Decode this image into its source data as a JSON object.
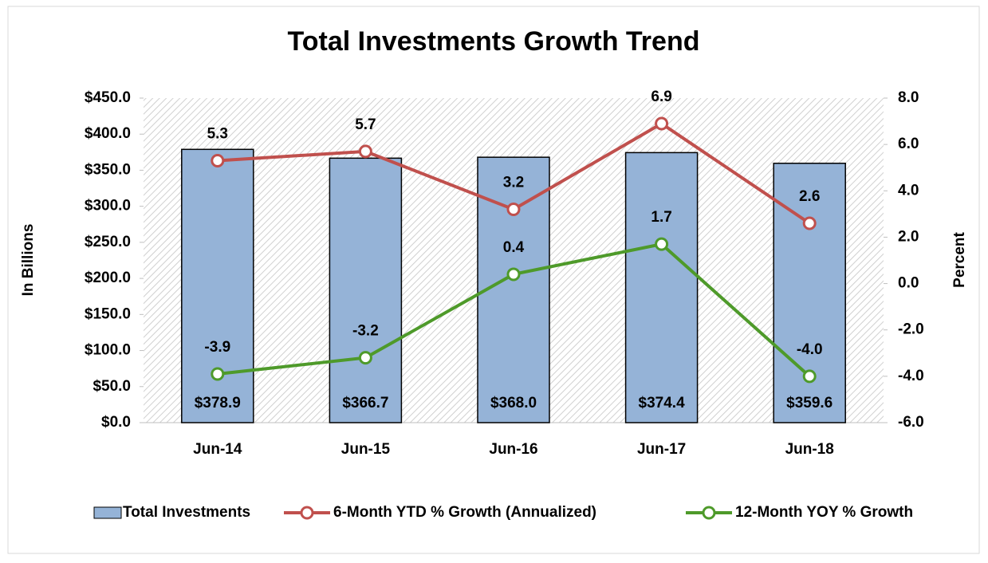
{
  "chart_data": {
    "type": "bar",
    "title": "Total Investments Growth Trend",
    "categories": [
      "Jun-14",
      "Jun-15",
      "Jun-16",
      "Jun-17",
      "Jun-18"
    ],
    "y_label": "In Billions",
    "y2_label": "Percent",
    "series": [
      {
        "name": "Total Investments",
        "type": "bar",
        "color": "#95b3d7",
        "values": [
          378.9,
          366.7,
          368.0,
          374.4,
          359.6
        ],
        "value_labels": [
          "$378.9",
          "$366.7",
          "$368.0",
          "$374.4",
          "$359.6"
        ]
      },
      {
        "name": "6-Month YTD % Growth (Annualized)",
        "type": "line",
        "axis": "y2",
        "color": "#c0504d",
        "values": [
          5.3,
          5.7,
          3.2,
          6.9,
          2.6
        ],
        "value_labels": [
          "5.3",
          "5.7",
          "3.2",
          "6.9",
          "2.6"
        ]
      },
      {
        "name": "12-Month YOY % Growth",
        "type": "line",
        "axis": "y2",
        "color": "#4e9a2a",
        "values": [
          -3.9,
          -3.2,
          0.4,
          1.7,
          -4.0
        ],
        "value_labels": [
          "-3.9",
          "-3.2",
          "0.4",
          "1.7",
          "-4.0"
        ]
      }
    ],
    "ylim": [
      0,
      450
    ],
    "yticks": [
      {
        "value": 0,
        "label": "$0.0"
      },
      {
        "value": 50,
        "label": "$50.0"
      },
      {
        "value": 100,
        "label": "$100.0"
      },
      {
        "value": 150,
        "label": "$150.0"
      },
      {
        "value": 200,
        "label": "$200.0"
      },
      {
        "value": 250,
        "label": "$250.0"
      },
      {
        "value": 300,
        "label": "$300.0"
      },
      {
        "value": 350,
        "label": "$350.0"
      },
      {
        "value": 400,
        "label": "$400.0"
      },
      {
        "value": 450,
        "label": "$450.0"
      }
    ],
    "y2lim": [
      -6,
      8
    ],
    "y2ticks": [
      {
        "value": -6,
        "label": "-6.0"
      },
      {
        "value": -4,
        "label": "-4.0"
      },
      {
        "value": -2,
        "label": "-2.0"
      },
      {
        "value": 0,
        "label": "0.0"
      },
      {
        "value": 2,
        "label": "2.0"
      },
      {
        "value": 4,
        "label": "4.0"
      },
      {
        "value": 6,
        "label": "6.0"
      },
      {
        "value": 8,
        "label": "8.0"
      }
    ],
    "grid": false,
    "legend": "bottom"
  }
}
